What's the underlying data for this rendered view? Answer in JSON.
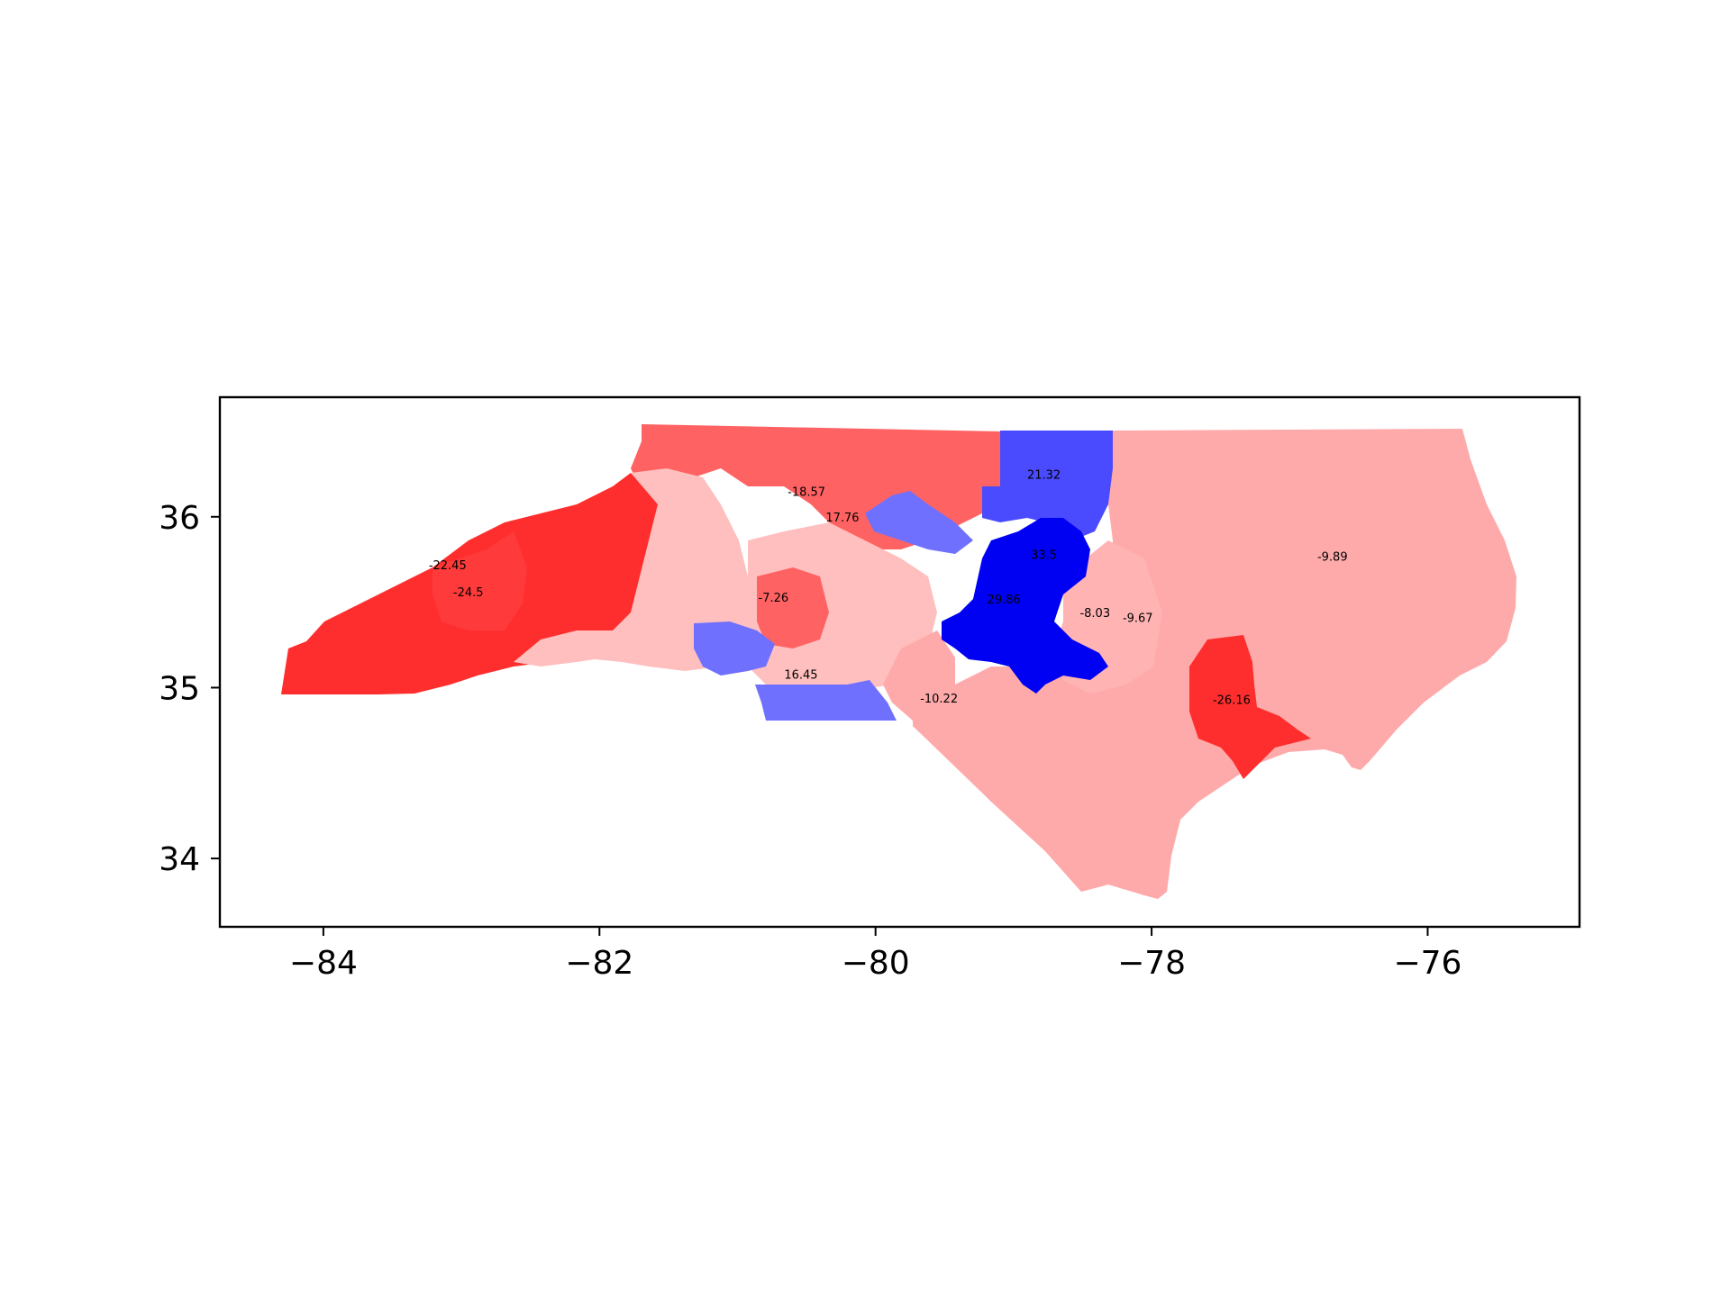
{
  "chart_data": {
    "type": "choropleth-map",
    "xlim": [
      -84.75,
      -74.9
    ],
    "ylim": [
      33.6,
      36.7
    ],
    "x_ticks": [
      {
        "value": -84,
        "label": "−84"
      },
      {
        "value": -82,
        "label": "−82"
      },
      {
        "value": -80,
        "label": "−80"
      },
      {
        "value": -78,
        "label": "−78"
      },
      {
        "value": -76,
        "label": "−76"
      }
    ],
    "y_ticks": [
      {
        "value": 34,
        "label": "34"
      },
      {
        "value": 35,
        "label": "35"
      },
      {
        "value": 36,
        "label": "36"
      }
    ],
    "colors": {
      "strong_red": "#ff2e2e",
      "medium_red": "#ff6262",
      "light_red": "#ffaaaa",
      "pale_red": "#ffbfbf",
      "medium_blue": "#7070ff",
      "blue": "#4a4aff",
      "strong_blue": "#0000f2"
    },
    "districts": [
      {
        "label": "-22.45",
        "value": -22.45,
        "lon": -83.1,
        "lat": 35.72
      },
      {
        "label": "-24.5",
        "value": -24.5,
        "lon": -82.95,
        "lat": 35.56
      },
      {
        "label": "-18.57",
        "value": -18.57,
        "lon": -80.5,
        "lat": 36.15
      },
      {
        "label": "17.76",
        "value": 17.76,
        "lon": -80.24,
        "lat": 36.0
      },
      {
        "label": "21.32",
        "value": 21.32,
        "lon": -78.78,
        "lat": 36.25
      },
      {
        "label": "33.5",
        "value": 33.5,
        "lon": -78.78,
        "lat": 35.78
      },
      {
        "label": "29.86",
        "value": 29.86,
        "lon": -79.07,
        "lat": 35.52
      },
      {
        "label": "-7.26",
        "value": -7.26,
        "lon": -80.74,
        "lat": 35.53
      },
      {
        "label": "-8.03",
        "value": -8.03,
        "lon": -78.41,
        "lat": 35.44
      },
      {
        "label": "-9.67",
        "value": -9.67,
        "lon": -78.1,
        "lat": 35.41
      },
      {
        "label": "-9.89",
        "value": -9.89,
        "lon": -76.69,
        "lat": 35.77
      },
      {
        "label": "16.45",
        "value": 16.45,
        "lon": -80.54,
        "lat": 35.08
      },
      {
        "label": "-10.22",
        "value": -10.22,
        "lon": -79.54,
        "lat": 34.94
      },
      {
        "label": "-26.16",
        "value": -26.16,
        "lon": -77.42,
        "lat": 34.93
      }
    ]
  }
}
